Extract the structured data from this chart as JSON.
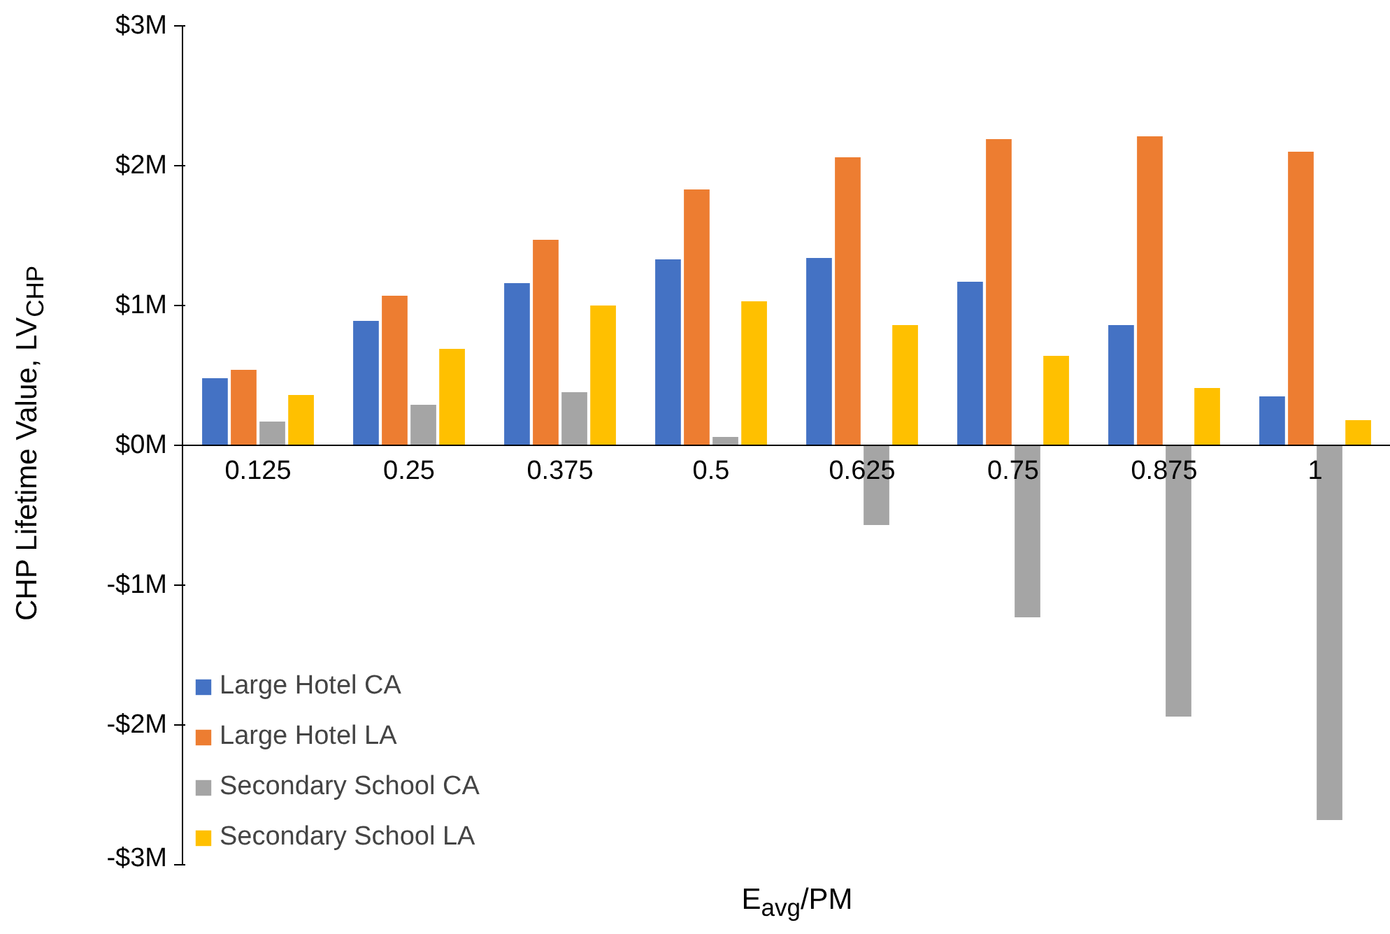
{
  "chart_data": {
    "type": "bar",
    "xlabel": "E$_{avg}$/PM",
    "ylabel": "CHP Lifetime Value, LV$_{CHP}$",
    "categories": [
      "0.125",
      "0.25",
      "0.375",
      "0.5",
      "0.625",
      "0.75",
      "0.875",
      "1"
    ],
    "series": [
      {
        "name": "Large Hotel CA",
        "color": "#4472c4",
        "values": [
          0.48,
          0.89,
          1.16,
          1.33,
          1.34,
          1.17,
          0.86,
          0.35
        ]
      },
      {
        "name": "Large Hotel LA",
        "color": "#ed7d31",
        "values": [
          0.54,
          1.07,
          1.47,
          1.83,
          2.06,
          2.19,
          2.21,
          2.1
        ]
      },
      {
        "name": "Secondary School CA",
        "color": "#a5a5a5",
        "values": [
          0.17,
          0.29,
          0.38,
          0.06,
          -0.57,
          -1.23,
          -1.94,
          -2.68
        ]
      },
      {
        "name": "Secondary School LA",
        "color": "#ffc000",
        "values": [
          0.36,
          0.69,
          1.0,
          1.03,
          0.86,
          0.64,
          0.41,
          0.18
        ]
      }
    ],
    "ylim": [
      -3,
      3
    ],
    "yticks": [
      {
        "value": -3,
        "label": "-$3M"
      },
      {
        "value": -2,
        "label": "-$2M"
      },
      {
        "value": -1,
        "label": "-$1M"
      },
      {
        "value": 0,
        "label": "$0M"
      },
      {
        "value": 1,
        "label": "$1M"
      },
      {
        "value": 2,
        "label": "$2M"
      },
      {
        "value": 3,
        "label": "$3M"
      }
    ],
    "grid": false,
    "legend": "bottom left"
  }
}
